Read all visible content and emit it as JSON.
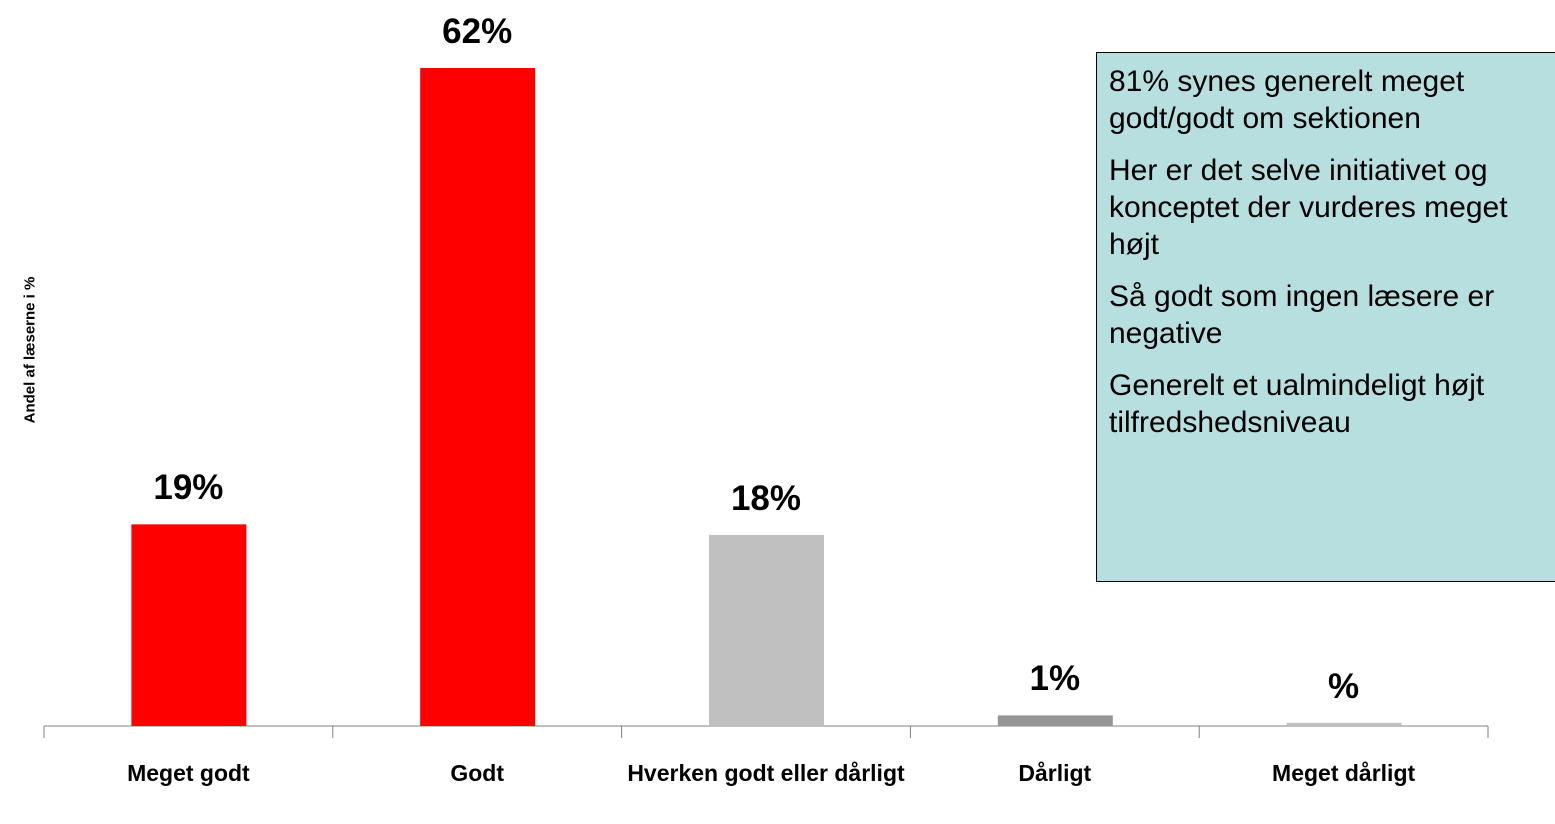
{
  "chart_data": {
    "type": "bar",
    "y_label": "Andel af læserne i %",
    "categories": [
      "Meget godt",
      "Godt",
      "Hverken godt eller dårligt",
      "Dårligt",
      "Meget dårligt"
    ],
    "values": [
      19,
      62,
      18,
      1,
      0.3
    ],
    "value_labels": [
      "19%",
      "62%",
      "18%",
      "1%",
      "%"
    ],
    "colors": [
      "#ff0000",
      "#ff0000",
      "#c0c0c0",
      "#969696",
      "#c0c0c0"
    ],
    "ylim": [
      0,
      62
    ],
    "annotations": [
      "81% synes generelt meget godt/godt om sektionen",
      "Her er det selve initiativet og konceptet der vurderes meget højt",
      "Så godt som ingen læsere er negative",
      "Generelt et ualmindeligt højt tilfredshedsniveau"
    ]
  }
}
